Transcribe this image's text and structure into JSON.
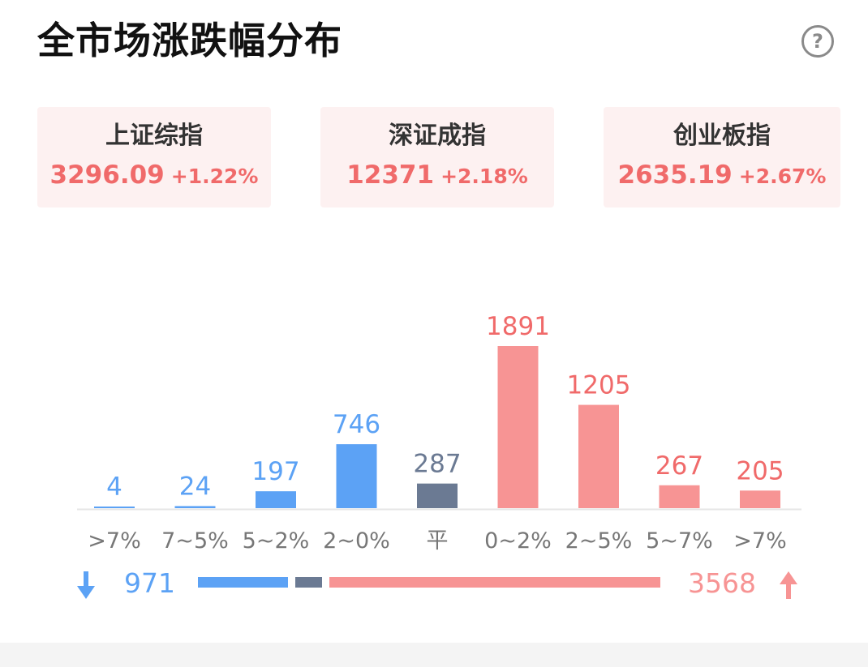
{
  "header": {
    "title": "全市场涨跌幅分布",
    "help_symbol": "?"
  },
  "indices": [
    {
      "name": "上证综指",
      "value": "3296.09",
      "change": "+1.22%"
    },
    {
      "name": "深证成指",
      "value": "12371",
      "change": "+2.18%"
    },
    {
      "name": "创业板指",
      "value": "2635.19",
      "change": "+2.67%"
    }
  ],
  "colors": {
    "down": "#5ca2f5",
    "flat": "#6b7a93",
    "up": "#f79494",
    "up_text": "#f06a6a",
    "axis": "#e6e6e6",
    "tick": "#777777"
  },
  "chart_data": {
    "type": "bar",
    "categories": [
      ">7%",
      "7~5%",
      "5~2%",
      "2~0%",
      "平",
      "0~2%",
      "2~5%",
      "5~7%",
      ">7%"
    ],
    "values": [
      4,
      24,
      197,
      746,
      287,
      1891,
      1205,
      267,
      205
    ],
    "groups": [
      "down",
      "down",
      "down",
      "down",
      "flat",
      "up",
      "up",
      "up",
      "up"
    ],
    "ylim": [
      0,
      1891
    ]
  },
  "summary": {
    "down_total": "971",
    "up_total": "3568",
    "flat_total": 287,
    "down_icon": "arrow-down-icon",
    "up_icon": "arrow-up-icon"
  }
}
